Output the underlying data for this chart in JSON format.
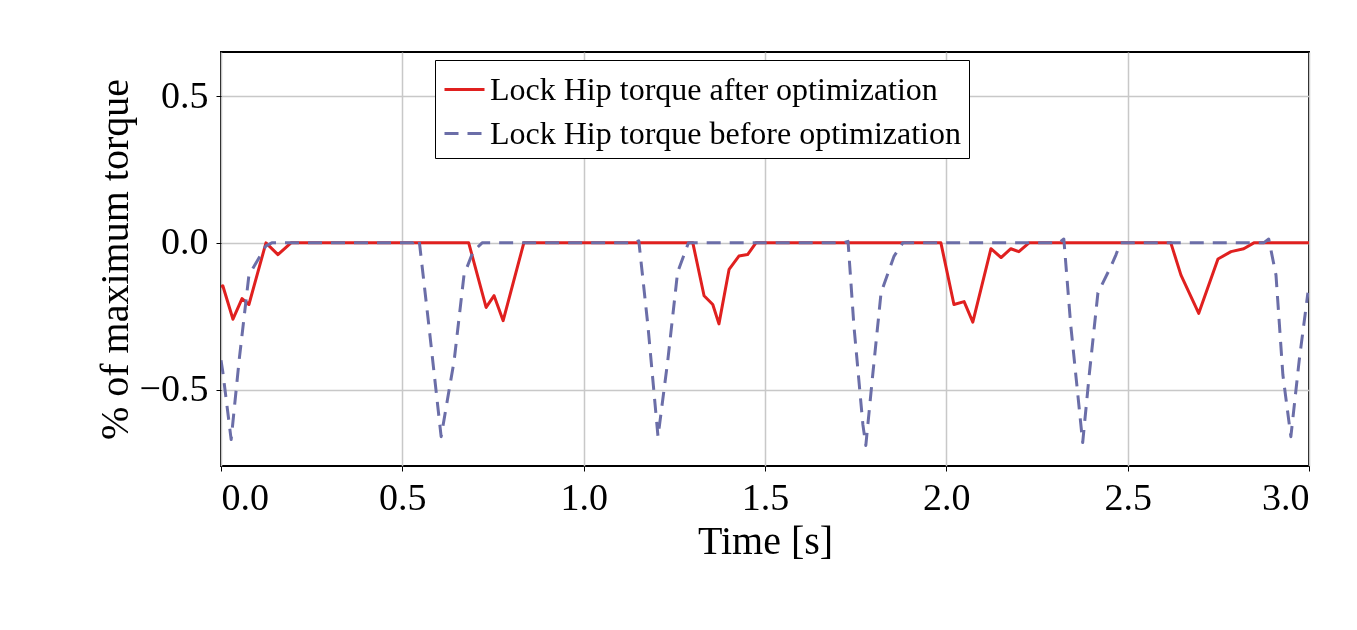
{
  "chart_data": {
    "type": "line",
    "xlabel": "Time [s]",
    "ylabel": "% of maximum torque",
    "xlim": [
      0,
      3
    ],
    "ylim": [
      -0.76,
      0.65
    ],
    "xticks": [
      {
        "value": 0,
        "label": "0.0"
      },
      0.5,
      {
        "value": 1,
        "label": "1.0"
      },
      1.5,
      {
        "value": 2,
        "label": "2.0"
      },
      2.5,
      {
        "value": 3,
        "label": "3.0"
      }
    ],
    "yticks": [
      {
        "value": -0.5,
        "label": "−0.5"
      },
      {
        "value": 0,
        "label": "0.0"
      },
      0.5
    ],
    "grid": true,
    "legend": "top",
    "marker": "none",
    "series": [
      {
        "name": "Lock Hip torque after optimization",
        "color": "#e0201f",
        "line_style": "solid",
        "x": [
          0,
          0.005,
          0.033,
          0.058,
          0.077,
          0.124,
          0.157,
          0.193,
          0.683,
          0.731,
          0.753,
          0.778,
          0.835,
          1.301,
          1.332,
          1.356,
          1.373,
          1.401,
          1.428,
          1.452,
          1.475,
          1.985,
          2.021,
          2.049,
          2.073,
          2.123,
          2.151,
          2.178,
          2.2,
          2.228,
          2.619,
          2.647,
          2.696,
          2.749,
          2.785,
          2.82,
          2.848,
          3.0
        ],
        "values": [
          -0.15,
          -0.146,
          -0.26,
          -0.19,
          -0.21,
          0,
          -0.04,
          0,
          0,
          -0.22,
          -0.18,
          -0.265,
          0,
          0,
          -0.18,
          -0.21,
          -0.276,
          -0.09,
          -0.045,
          -0.04,
          0,
          0,
          -0.21,
          -0.2,
          -0.27,
          -0.02,
          -0.05,
          -0.02,
          -0.03,
          0,
          0,
          -0.11,
          -0.24,
          -0.055,
          -0.03,
          -0.02,
          0,
          0
        ]
      },
      {
        "name": "Lock Hip torque before optimization",
        "color": "#6b6ea8",
        "line_style": "dashed",
        "x": [
          0,
          0.005,
          0.028,
          0.05,
          0.077,
          0.124,
          0.14,
          0.53,
          0.546,
          0.573,
          0.607,
          0.643,
          0.67,
          0.695,
          0.72,
          1.14,
          1.152,
          1.177,
          1.205,
          1.232,
          1.259,
          1.289,
          1.715,
          1.729,
          1.745,
          1.77,
          1.778,
          1.797,
          1.82,
          1.856,
          1.88,
          2.31,
          2.324,
          2.343,
          2.376,
          2.394,
          2.418,
          2.454,
          2.468,
          2.48,
          2.875,
          2.889,
          2.909,
          2.928,
          2.95,
          2.973,
          2.997
        ],
        "values": [
          -0.4,
          -0.44,
          -0.67,
          -0.4,
          -0.11,
          -0.01,
          0,
          0,
          0.013,
          -0.28,
          -0.66,
          -0.4,
          -0.11,
          -0.03,
          0,
          0,
          0.007,
          -0.28,
          -0.66,
          -0.4,
          -0.1,
          0,
          0,
          0.005,
          -0.28,
          -0.62,
          -0.69,
          -0.45,
          -0.17,
          -0.045,
          0,
          0,
          0.013,
          -0.28,
          -0.68,
          -0.45,
          -0.17,
          -0.08,
          -0.04,
          0,
          0,
          0.013,
          -0.11,
          -0.45,
          -0.66,
          -0.4,
          -0.17
        ]
      }
    ]
  }
}
